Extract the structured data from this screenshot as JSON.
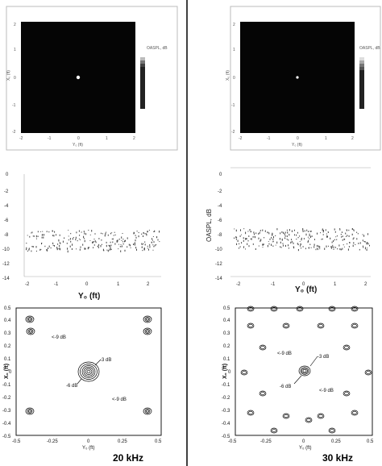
{
  "panels": [
    {
      "id": "left",
      "frequency": "20 kHz",
      "map": {
        "xlabel": "Y₀ (ft)",
        "ylabel": "X₀ (ft)",
        "xticks": [
          "-2",
          "-1",
          "0",
          "1",
          "2"
        ],
        "yticks": [
          "2",
          "1",
          "0",
          "-1",
          "-2"
        ],
        "legend_title": "OASPL, dB"
      },
      "profile": {
        "xlabel": "Y₀ (ft)",
        "ylabel": "",
        "xticks": [
          "-2",
          "-1",
          "0",
          "1",
          "2"
        ],
        "yticks": [
          "0",
          "-2",
          "-4",
          "-6",
          "-8",
          "-10",
          "-12",
          "-14"
        ]
      },
      "contour": {
        "xlabel": "Y₀ (ft)",
        "ylabel": "X₀ (ft)",
        "xticks": [
          "-0.5",
          "-0.25",
          "0",
          "0.25",
          "0.5"
        ],
        "yticks": [
          "0.5",
          "0.4",
          "0.3",
          "0.2",
          "0.1",
          "0",
          "-0.1",
          "-0.2",
          "-0.3",
          "-0.4",
          "-0.5"
        ],
        "annotations": [
          "-3 dB",
          "-6 dB",
          "<-9 dB",
          "<-9 dB"
        ]
      }
    },
    {
      "id": "right",
      "frequency": "30 kHz",
      "map": {
        "xlabel": "Y₀ (ft)",
        "ylabel": "X₀ (ft)",
        "xticks": [
          "-2",
          "-1",
          "0",
          "1",
          "2"
        ],
        "yticks": [
          "2",
          "1",
          "0",
          "-1",
          "-2"
        ],
        "legend_title": "OASPL, dB"
      },
      "profile": {
        "xlabel": "Y₀ (ft)",
        "ylabel": "OASPL, dB",
        "xticks": [
          "-2",
          "-1",
          "0",
          "1",
          "2"
        ],
        "yticks": [
          "0",
          "-2",
          "-4",
          "-6",
          "-8",
          "-10",
          "-12",
          "-14"
        ]
      },
      "contour": {
        "xlabel": "Y₀ (ft)",
        "ylabel": "X₀ (ft)",
        "xticks": [
          "-0.5",
          "-0.25",
          "0",
          "0.25",
          "0.5"
        ],
        "yticks": [
          "0.5",
          "0.4",
          "0.3",
          "0.2",
          "0.1",
          "0",
          "-0.1",
          "-0.2",
          "-0.3",
          "-0.4",
          "-0.5"
        ],
        "annotations": [
          "-3 dB",
          "-6 dB",
          "<-9 dB",
          "<-9 dB"
        ]
      }
    }
  ]
}
